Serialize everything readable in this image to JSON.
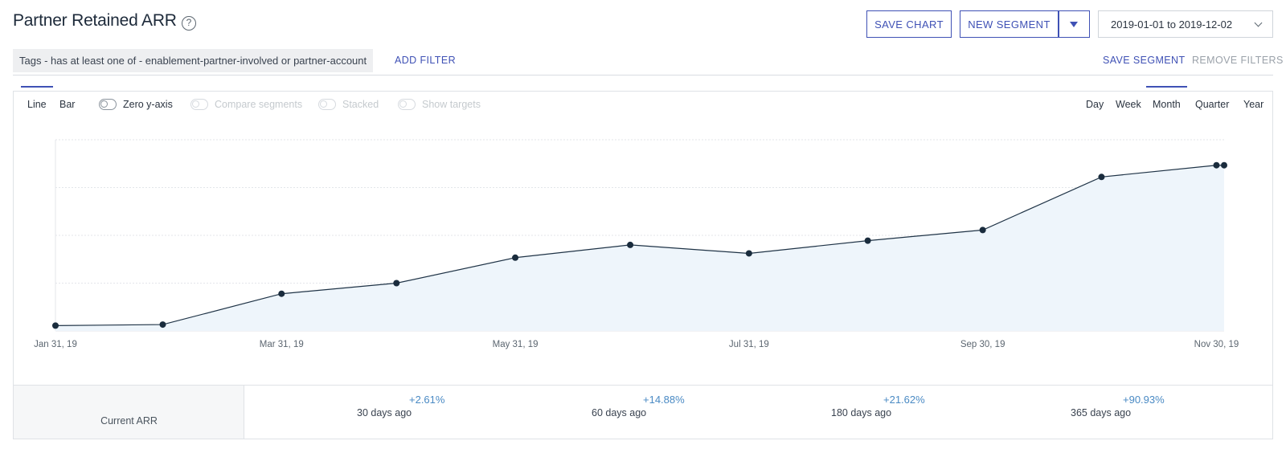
{
  "header": {
    "title": "Partner Retained ARR",
    "help_icon": "?",
    "save_chart_label": "SAVE CHART",
    "new_segment_label": "NEW SEGMENT",
    "date_range": "2019-01-01 to 2019-12-02"
  },
  "filters": {
    "active_filter": "Tags - has at least one of - enablement-partner-involved or partner-account",
    "add_filter_label": "ADD FILTER",
    "save_segment_label": "SAVE SEGMENT",
    "remove_filters_label": "REMOVE FILTERS"
  },
  "chart_controls": {
    "chart_types": [
      "Line",
      "Bar"
    ],
    "selected_chart_type": "Line",
    "toggles": [
      {
        "label": "Zero y-axis",
        "enabled": true
      },
      {
        "label": "Compare segments",
        "enabled": false
      },
      {
        "label": "Stacked",
        "enabled": false
      },
      {
        "label": "Show targets",
        "enabled": false
      }
    ],
    "intervals": [
      "Day",
      "Week",
      "Month",
      "Quarter",
      "Year"
    ],
    "selected_interval": "Month"
  },
  "chart_data": {
    "type": "area",
    "x": [
      "2019-01-31",
      "2019-02-28",
      "2019-03-31",
      "2019-04-30",
      "2019-05-31",
      "2019-06-30",
      "2019-07-31",
      "2019-08-31",
      "2019-09-30",
      "2019-10-31",
      "2019-11-30",
      "2019-12-02"
    ],
    "x_tick_labels": [
      "Jan 31, 19",
      "Mar 31, 19",
      "May 31, 19",
      "Jul 31, 19",
      "Sep 30, 19",
      "Nov 30, 19"
    ],
    "series": [
      {
        "values": [
          1.0,
          1.1,
          4.0,
          5.0,
          7.4,
          8.6,
          7.8,
          9.0,
          10.0,
          15.0,
          16.1,
          16.1
        ]
      }
    ],
    "y_axis_labels_shown": false,
    "ylim": [
      0.5,
      18.5
    ],
    "grid": true,
    "colors": {
      "line": "#1f3346",
      "fill": "#eef5fb",
      "marker": "#1a2c3d",
      "grid": "#e3e6ea"
    }
  },
  "summary": {
    "label": "Current ARR",
    "comparisons": [
      {
        "delta": "+2.61%",
        "period": "30 days ago"
      },
      {
        "delta": "+14.88%",
        "period": "60 days ago"
      },
      {
        "delta": "+21.62%",
        "period": "180 days ago"
      },
      {
        "delta": "+90.93%",
        "period": "365 days ago"
      }
    ]
  },
  "colors": {
    "accent": "#3f51b5",
    "positive_delta": "#4a8ac4",
    "muted": "#9aa1a9"
  }
}
